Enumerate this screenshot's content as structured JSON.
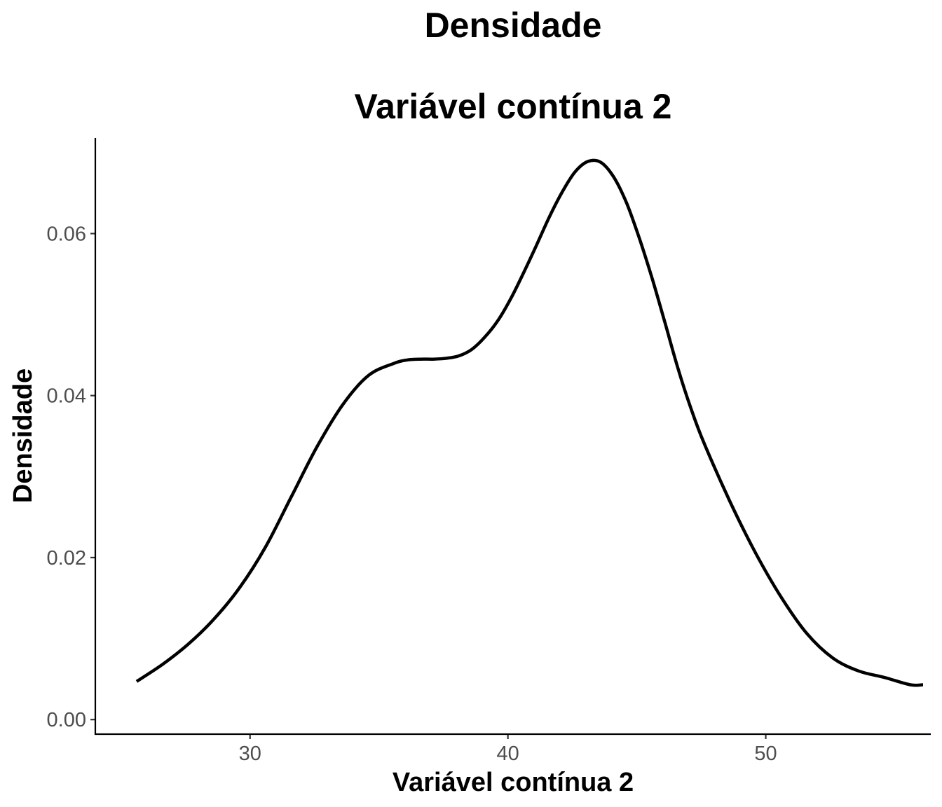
{
  "chart_data": {
    "type": "line",
    "title": "Densidade",
    "subtitle": "Variável contínua 2",
    "xlabel": "Variável contínua 2",
    "ylabel": "Densidade",
    "xlim": [
      24.0,
      56.4
    ],
    "ylim": [
      -0.0018,
      0.0718
    ],
    "x_ticks": [
      30,
      40,
      50
    ],
    "x_tick_labels": [
      "30",
      "40",
      "50"
    ],
    "y_ticks": [
      0.0,
      0.02,
      0.04,
      0.06
    ],
    "y_tick_labels": [
      "0.00",
      "0.02",
      "0.04",
      "0.06"
    ],
    "grid": false,
    "legend": "none",
    "series": [
      {
        "color": "#000000",
        "x": [
          25.6,
          26.6,
          27.6,
          28.6,
          29.6,
          30.6,
          31.6,
          32.6,
          33.6,
          34.6,
          35.6,
          36.1,
          36.6,
          37.1,
          37.6,
          38.1,
          38.6,
          39.1,
          39.6,
          40.1,
          40.6,
          41.1,
          41.6,
          42.1,
          42.6,
          43.1,
          43.6,
          44.1,
          44.6,
          45.1,
          45.6,
          46.1,
          46.6,
          47.1,
          47.6,
          48.6,
          49.6,
          50.6,
          51.6,
          52.6,
          53.6,
          54.6,
          55.6,
          56.1
        ],
        "y": [
          0.0047,
          0.0068,
          0.0093,
          0.0124,
          0.0163,
          0.0213,
          0.0275,
          0.0337,
          0.0389,
          0.0425,
          0.044,
          0.0444,
          0.0445,
          0.0445,
          0.0446,
          0.0449,
          0.0457,
          0.0472,
          0.0492,
          0.0519,
          0.0551,
          0.0585,
          0.062,
          0.0651,
          0.0676,
          0.0689,
          0.0688,
          0.067,
          0.0638,
          0.0594,
          0.0544,
          0.0489,
          0.0433,
          0.0384,
          0.0342,
          0.027,
          0.0206,
          0.0151,
          0.0106,
          0.0076,
          0.006,
          0.0052,
          0.0043,
          0.0043
        ]
      }
    ]
  }
}
